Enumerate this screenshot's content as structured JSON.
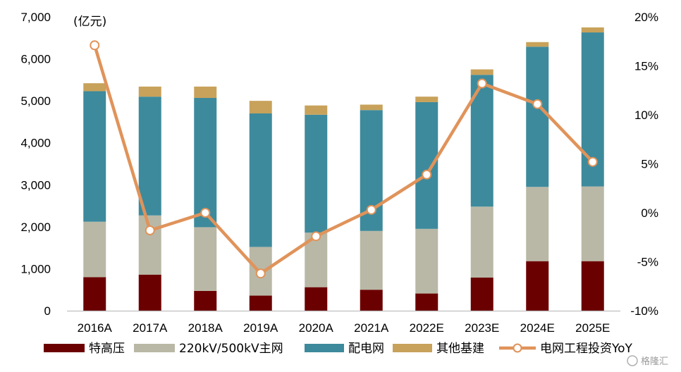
{
  "chart_data": {
    "type": "bar",
    "stacked": true,
    "unit_label": "(亿元)",
    "categories": [
      "2016A",
      "2017A",
      "2018A",
      "2019A",
      "2020A",
      "2021A",
      "2022E",
      "2023E",
      "2024E",
      "2025E"
    ],
    "series": [
      {
        "name": "特高压",
        "color": "#6b0000",
        "values": [
          800,
          860,
          470,
          360,
          560,
          500,
          410,
          790,
          1180,
          1180
        ]
      },
      {
        "name": "220kV/500kV主网",
        "color": "#b9b8a6",
        "values": [
          1320,
          1410,
          1520,
          1160,
          1300,
          1400,
          1540,
          1690,
          1770,
          1780
        ]
      },
      {
        "name": "配电网",
        "color": "#3d8a9c",
        "values": [
          3110,
          2830,
          3080,
          3180,
          2810,
          2880,
          3020,
          3140,
          3340,
          3670
        ]
      },
      {
        "name": "其他基建",
        "color": "#c8a25a",
        "values": [
          190,
          240,
          270,
          300,
          220,
          130,
          130,
          130,
          110,
          120
        ]
      }
    ],
    "line": {
      "name": "电网工程投资YoY",
      "color": "#e0935a",
      "axis": "right",
      "values": [
        17.1,
        -1.8,
        0.0,
        -6.2,
        -2.4,
        0.3,
        3.9,
        13.2,
        11.1,
        5.2
      ]
    },
    "ylim_left": [
      0,
      7000
    ],
    "ylim_right": [
      -10,
      20
    ],
    "yticks_left": [
      "0",
      "1,000",
      "2,000",
      "3,000",
      "4,000",
      "5,000",
      "6,000",
      "7,000"
    ],
    "yticks_right": [
      "-10%",
      "-5%",
      "0%",
      "5%",
      "10%",
      "15%",
      "20%"
    ],
    "grid": false,
    "legend_position": "bottom"
  },
  "watermark": "格隆汇"
}
